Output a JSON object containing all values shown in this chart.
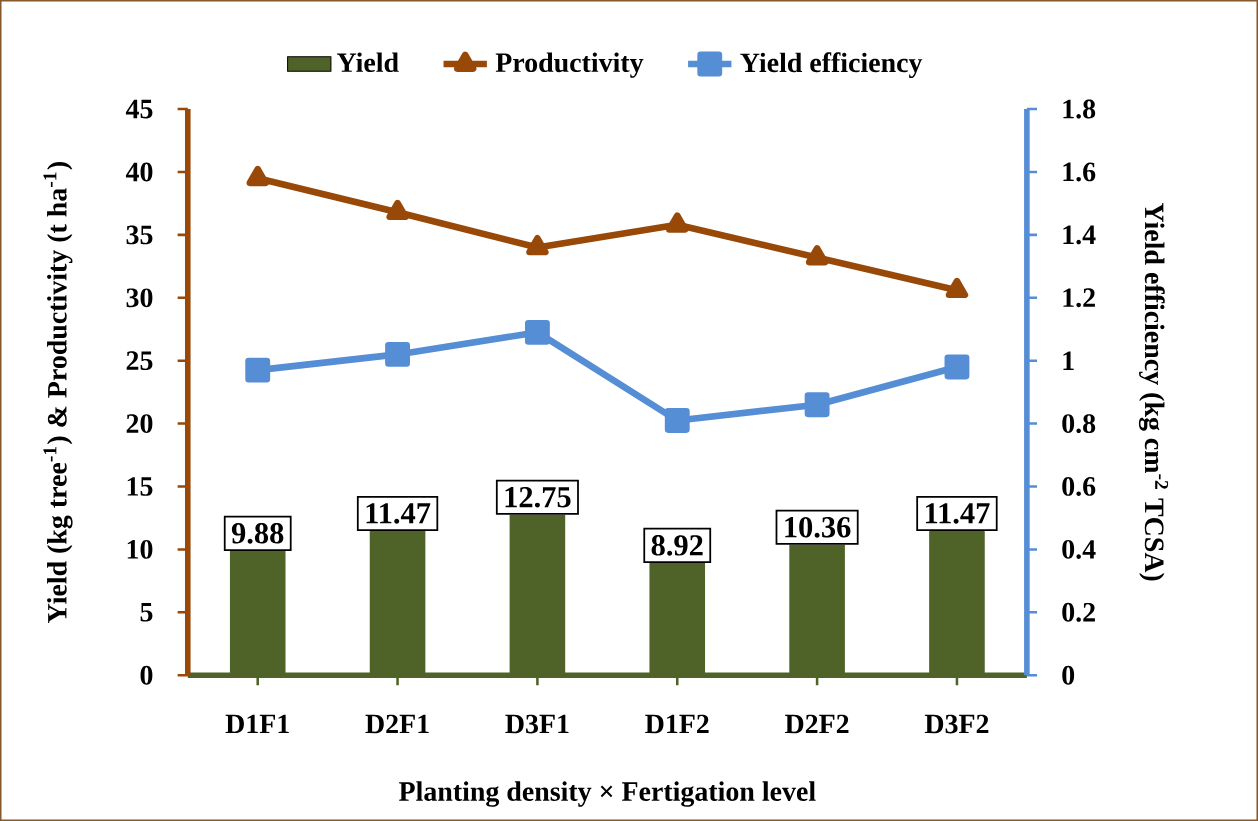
{
  "chart_data": {
    "type": "bar",
    "xlabel": "Planting density × Fertigation level",
    "ylabel": "Yield (kg tree$^{-1}$) & Productivity (t ha$^{-1}$)",
    "y2label": "Yield efficiency (kg cm$^{-2}$ TCSA)",
    "categories": [
      "D1F1",
      "D2F1",
      "D3F1",
      "D1F2",
      "D2F2",
      "D3F2"
    ],
    "series": [
      {
        "name": "Yield",
        "color": "#4f6228",
        "values": [
          9.88,
          11.47,
          12.75,
          8.92,
          10.36,
          11.47
        ],
        "value_labels": [
          "9.88",
          "11.47",
          "12.75",
          "8.92",
          "10.36",
          "11.47"
        ]
      },
      {
        "name": "Productivity",
        "type": "line",
        "marker": "triangle",
        "color": "#984807",
        "values": [
          39.5,
          36.8,
          34.0,
          35.8,
          33.2,
          30.6
        ]
      },
      {
        "name": "Yield efficiency",
        "type": "line",
        "marker": "square",
        "axis": "y2",
        "color": "#558ed5",
        "values": [
          0.97,
          1.02,
          1.09,
          0.81,
          0.86,
          0.98
        ]
      }
    ],
    "ylim": [
      0,
      45
    ],
    "yticks": [
      0,
      5,
      10,
      15,
      20,
      25,
      30,
      35,
      40,
      45
    ],
    "y2lim": [
      0,
      1.8
    ],
    "y2ticks": [
      0,
      0.2,
      0.4,
      0.6,
      0.8,
      1,
      1.2,
      1.4,
      1.6,
      1.8
    ],
    "legend": "top",
    "grid": false
  }
}
